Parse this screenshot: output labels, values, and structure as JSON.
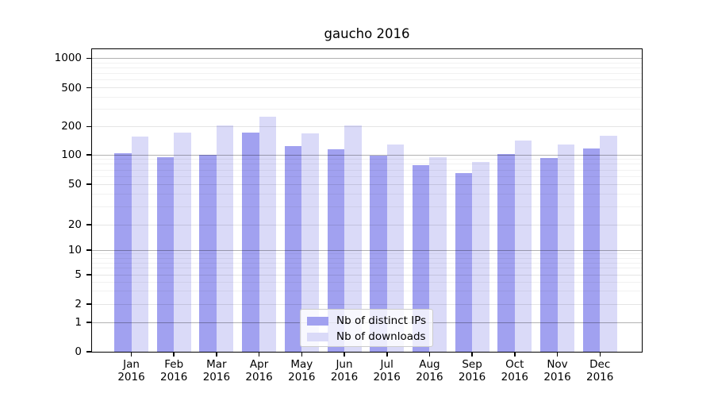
{
  "figure": {
    "title": "gaucho 2016",
    "background_color": "#ffffff"
  },
  "colors": {
    "distinct_ips": "#a1a1f0",
    "downloads": "#dadaf8",
    "axis": "#000000",
    "legend_border": "#cccccc"
  },
  "legend": {
    "items": [
      {
        "label": "Nb of distinct IPs",
        "color_key": "distinct_ips"
      },
      {
        "label": "Nb of downloads",
        "color_key": "downloads"
      }
    ]
  },
  "chart_data": {
    "type": "bar",
    "title": "gaucho 2016",
    "categories": [
      "Jan",
      "Feb",
      "Mar",
      "Apr",
      "May",
      "Jun",
      "Jul",
      "Aug",
      "Sep",
      "Oct",
      "Nov",
      "Dec"
    ],
    "category_year": "2016",
    "series": [
      {
        "name": "Nb of distinct IPs",
        "color_key": "distinct_ips",
        "values": [
          104,
          94,
          101,
          171,
          123,
          115,
          99,
          79,
          65,
          103,
          93,
          117
        ]
      },
      {
        "name": "Nb of downloads",
        "color_key": "downloads",
        "values": [
          156,
          174,
          204,
          250,
          170,
          205,
          130,
          95,
          84,
          141,
          129,
          158
        ]
      }
    ],
    "xlabel": "",
    "ylabel": "",
    "y_scale": "symlog",
    "y_ticks": [
      0,
      1,
      2,
      5,
      10,
      20,
      50,
      100,
      200,
      500,
      1000
    ],
    "ylim": [
      0,
      1260
    ],
    "grid": true,
    "legend_position": "lower center"
  }
}
